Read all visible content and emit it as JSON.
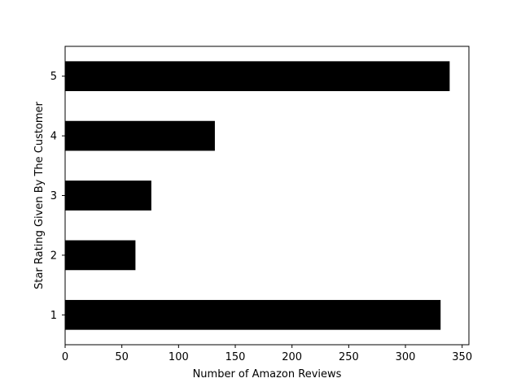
{
  "chart_data": {
    "type": "bar",
    "orientation": "horizontal",
    "categories": [
      "1",
      "2",
      "3",
      "4",
      "5"
    ],
    "values": [
      331,
      62,
      76,
      132,
      339
    ],
    "title": "",
    "xlabel": "Number of Amazon Reviews",
    "ylabel": "Star Rating Given By The Customer",
    "xlim": [
      0,
      355.95
    ],
    "xticks": [
      0,
      50,
      100,
      150,
      200,
      250,
      300,
      350
    ],
    "bar_color": "#000000",
    "grid": false,
    "legend": "none"
  }
}
